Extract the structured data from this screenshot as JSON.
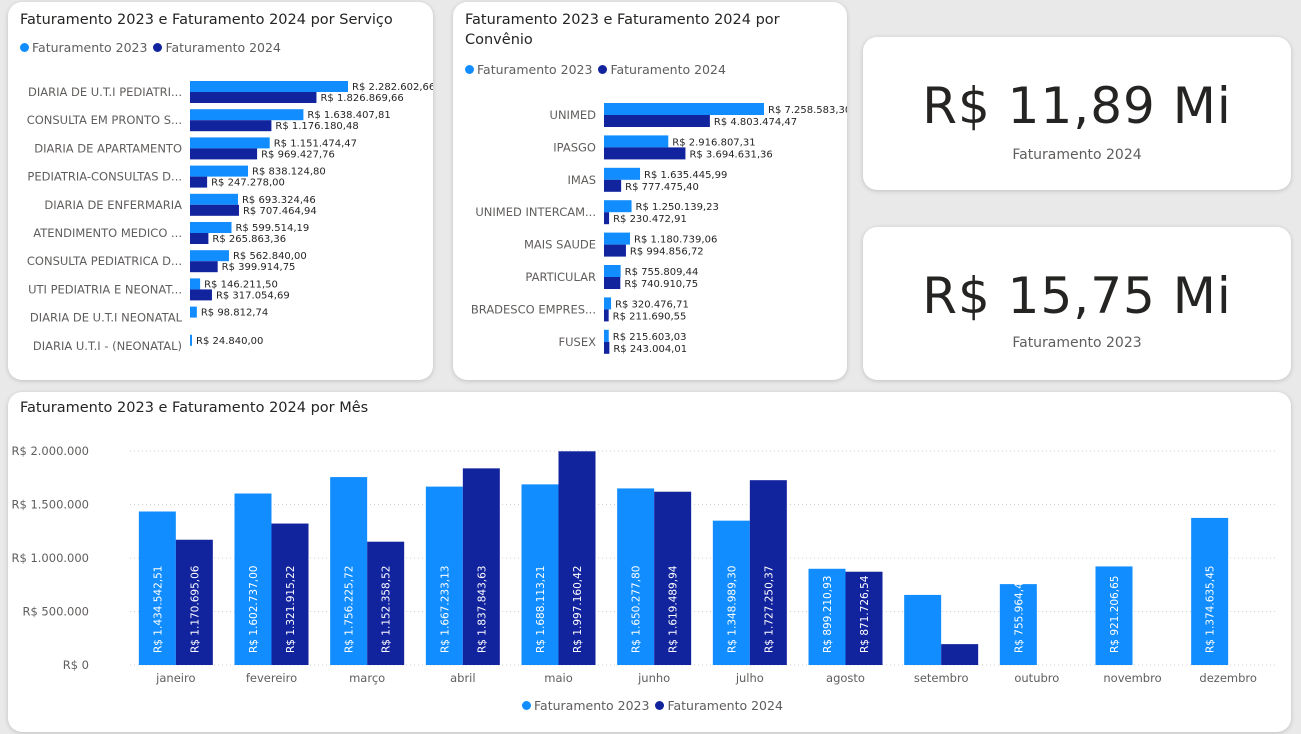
{
  "colors": {
    "c2023": "#118dff",
    "c2024": "#12239e"
  },
  "legend": {
    "label2023": "Faturamento 2023",
    "label2024": "Faturamento 2024"
  },
  "kpis": [
    {
      "value": "R$ 11,89 Mi",
      "label": "Faturamento 2024"
    },
    {
      "value": "R$ 15,75 Mi",
      "label": "Faturamento 2023"
    }
  ],
  "chart_data": [
    {
      "type": "bar",
      "orientation": "horizontal",
      "title": "Faturamento 2023 e Faturamento 2024 por Serviço",
      "categories": [
        "DIARIA DE U.T.I PEDIATRI...",
        "CONSULTA EM PRONTO S...",
        "DIARIA DE APARTAMENTO",
        "PEDIATRIA-CONSULTAS D...",
        "DIARIA DE ENFERMARIA",
        "ATENDIMENTO MEDICO ...",
        "CONSULTA PEDIATRICA D...",
        "UTI PEDIATRIA E NEONAT...",
        "DIARIA DE U.T.I NEONATAL",
        "DIARIA U.T.I - (NEONATAL)"
      ],
      "series": [
        {
          "name": "Faturamento 2023",
          "values": [
            2282602.66,
            1638407.81,
            1151474.47,
            838124.8,
            693324.46,
            599514.19,
            562840.0,
            146211.5,
            98812.74,
            24840.0
          ],
          "labels": [
            "R$ 2.282.602,66",
            "R$ 1.638.407,81",
            "R$ 1.151.474,47",
            "R$ 838.124,80",
            "R$ 693.324,46",
            "R$ 599.514,19",
            "R$ 562.840,00",
            "R$ 146.211,50",
            "R$ 98.812,74",
            "R$ 24.840,00"
          ]
        },
        {
          "name": "Faturamento 2024",
          "values": [
            1826869.66,
            1176180.48,
            969427.76,
            247278.0,
            707464.94,
            265863.36,
            399914.75,
            317054.69,
            null,
            null
          ],
          "labels": [
            "R$ 1.826.869,66",
            "R$ 1.176.180,48",
            "R$ 969.427,76",
            "R$ 247.278,00",
            "R$ 707.464,94",
            "R$ 265.863,36",
            "R$ 399.914,75",
            "R$ 317.054,69",
            "",
            ""
          ]
        }
      ],
      "legend": "top-left"
    },
    {
      "type": "bar",
      "orientation": "horizontal",
      "title": "Faturamento 2023 e Faturamento 2024 por Convênio",
      "categories": [
        "UNIMED",
        "IPASGO",
        "IMAS",
        "UNIMED INTERCAM...",
        "MAIS SAUDE",
        "PARTICULAR",
        "BRADESCO EMPRES...",
        "FUSEX"
      ],
      "series": [
        {
          "name": "Faturamento 2023",
          "values": [
            7258583.3,
            2916807.31,
            1635445.99,
            1250139.23,
            1180739.06,
            755809.44,
            320476.71,
            215603.03
          ],
          "labels": [
            "R$ 7.258.583,30",
            "R$ 2.916.807,31",
            "R$ 1.635.445,99",
            "R$ 1.250.139,23",
            "R$ 1.180.739,06",
            "R$ 755.809,44",
            "R$ 320.476,71",
            "R$ 215.603,03"
          ]
        },
        {
          "name": "Faturamento 2024",
          "values": [
            4803474.47,
            3694631.36,
            777475.4,
            230472.91,
            994856.72,
            740910.75,
            211690.55,
            243004.01
          ],
          "labels": [
            "R$ 4.803.474,47",
            "R$ 3.694.631,36",
            "R$ 777.475,40",
            "R$ 230.472,91",
            "R$ 994.856,72",
            "R$ 740.910,75",
            "R$ 211.690,55",
            "R$ 243.004,01"
          ]
        }
      ],
      "legend": "top-left"
    },
    {
      "type": "bar",
      "title": "Faturamento 2023 e Faturamento 2024 por Mês",
      "categories": [
        "janeiro",
        "fevereiro",
        "março",
        "abril",
        "maio",
        "junho",
        "julho",
        "agosto",
        "setembro",
        "outubro",
        "novembro",
        "dezembro"
      ],
      "ylim": [
        0,
        2000000
      ],
      "yticks": [
        {
          "value": 0,
          "label": "R$ 0"
        },
        {
          "value": 500000,
          "label": "R$ 500.000"
        },
        {
          "value": 1000000,
          "label": "R$ 1.000.000"
        },
        {
          "value": 1500000,
          "label": "R$ 1.500.000"
        },
        {
          "value": 2000000,
          "label": "R$ 2.000.000"
        }
      ],
      "grid": true,
      "series": [
        {
          "name": "Faturamento 2023",
          "values": [
            1434542.51,
            1602737.0,
            1756225.72,
            1667233.13,
            1688113.21,
            1650277.8,
            1348989.3,
            899210.93,
            655000,
            755964.42,
            921206.65,
            1374635.45
          ],
          "labels": [
            "R$ 1.434.542,51",
            "R$ 1.602.737,00",
            "R$ 1.756.225,72",
            "R$ 1.667.233,13",
            "R$ 1.688.113,21",
            "R$ 1.650.277,80",
            "R$ 1.348.989,30",
            "R$ 899.210,93",
            "",
            "R$ 755.964,42",
            "R$ 921.206,65",
            "R$ 1.374.635,45"
          ]
        },
        {
          "name": "Faturamento 2024",
          "values": [
            1170695.06,
            1321915.22,
            1152358.52,
            1837843.63,
            1997160.42,
            1619489.94,
            1727250.37,
            871726.54,
            195000,
            null,
            null,
            null
          ],
          "labels": [
            "R$ 1.170.695,06",
            "R$ 1.321.915,22",
            "R$ 1.152.358,52",
            "R$ 1.837.843,63",
            "R$ 1.997.160,42",
            "R$ 1.619.489,94",
            "R$ 1.727.250,37",
            "R$ 871.726,54",
            "",
            "",
            "",
            ""
          ]
        }
      ],
      "legend": "bottom-center"
    }
  ]
}
